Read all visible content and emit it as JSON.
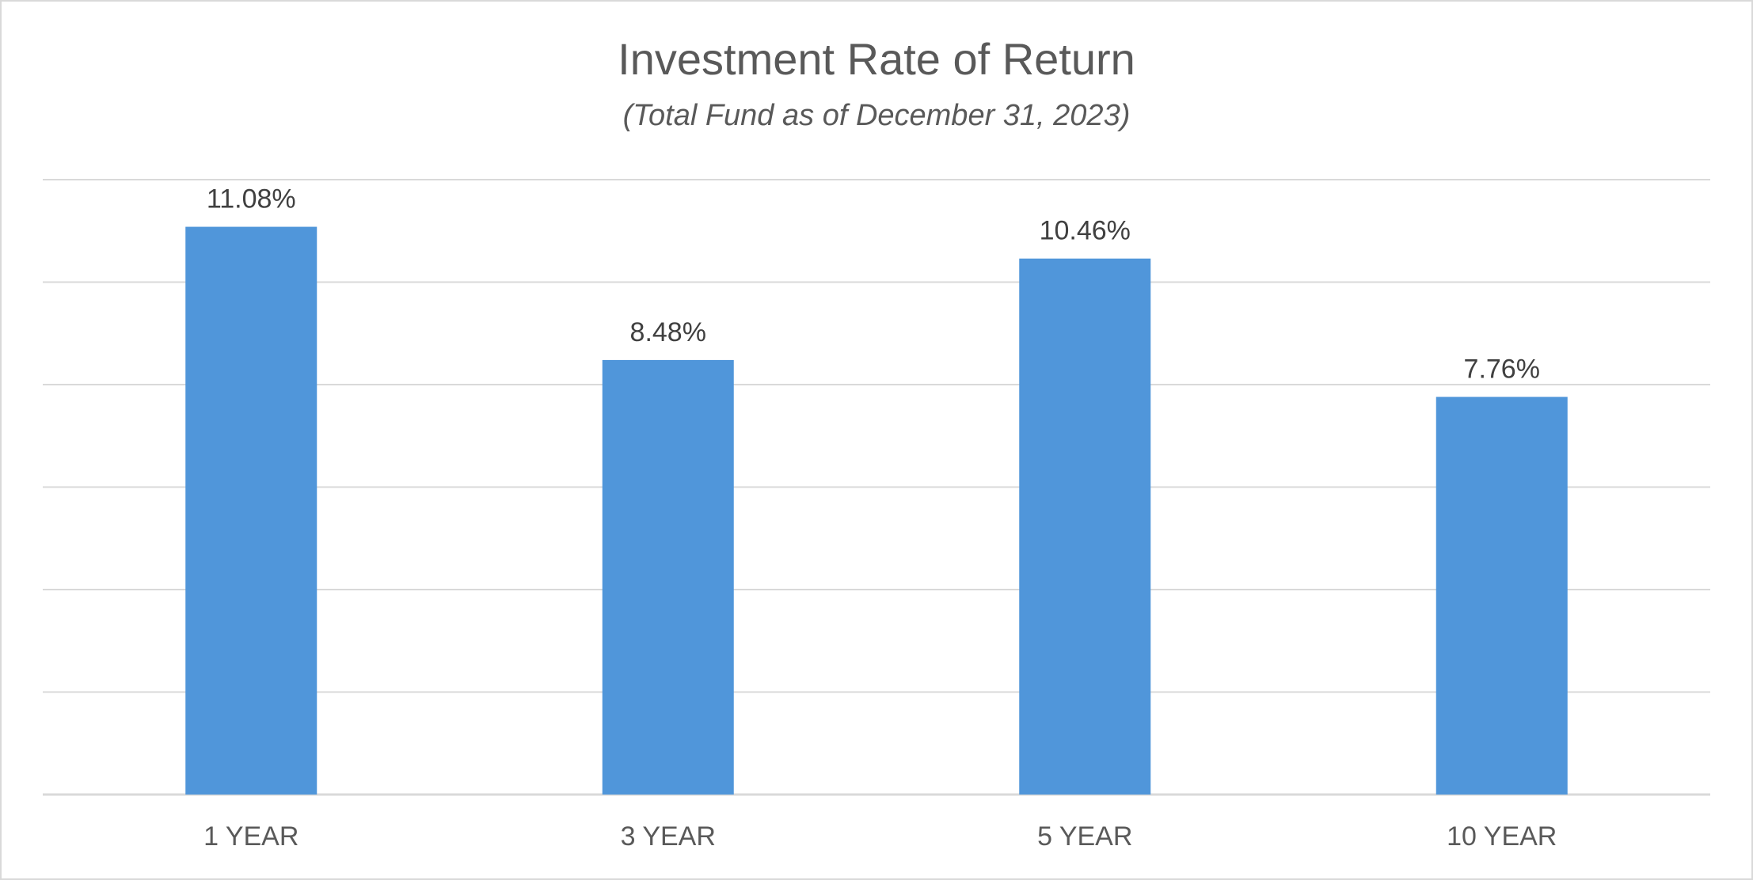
{
  "chart_data": {
    "type": "bar",
    "title": "Investment Rate of Return",
    "subtitle": "(Total Fund as of December 31, 2023)",
    "categories": [
      "1 YEAR",
      "3 YEAR",
      "5 YEAR",
      "10 YEAR"
    ],
    "values": [
      11.08,
      8.48,
      10.46,
      7.76
    ],
    "data_labels": [
      "11.08%",
      "8.48%",
      "10.46%",
      "7.76%"
    ],
    "ylim": [
      0,
      12
    ],
    "gridlines": true,
    "gridline_count": 7,
    "legend": "none",
    "colors": {
      "bar": "#5096DA",
      "grid": "#D9D9D9",
      "frame": "#D9D9D9"
    }
  }
}
